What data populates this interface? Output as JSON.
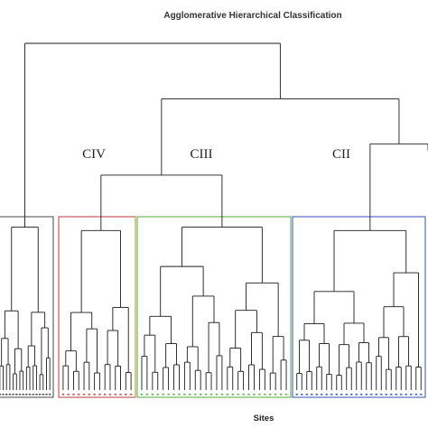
{
  "chart_data": {
    "type": "dendrogram",
    "title": "Agglomerative Hierarchical Classification",
    "xlabel": "Sites",
    "ylabel": "",
    "grid": false,
    "clusters": [
      {
        "id": "CV",
        "label": "",
        "color": "#555555",
        "leaves": 16
      },
      {
        "id": "CIV",
        "label": "CIV",
        "color": "#c0504d",
        "leaves": 14
      },
      {
        "id": "CIII",
        "label": "CIII",
        "color": "#5fb24a",
        "leaves": 28
      },
      {
        "id": "CII",
        "label": "CII",
        "color": "#3f5fbf",
        "leaves": 26
      }
    ],
    "box_colors": {
      "CV": "#555555",
      "CIV_left": "#c0504d",
      "CIV_right": "#c9a14a",
      "CIII": "#5fb24a",
      "CII": "#3f5fbf"
    },
    "merge_heights": {
      "root": 1.0,
      "CIV_CIII_CII": 0.84,
      "CII_rest": 0.71,
      "CIV_CIII": 0.62,
      "cluster_cut": 0.5
    },
    "cluster_link_heights": {
      "CV": 0.47,
      "CIV": 0.46,
      "CIII": 0.47,
      "CII": 0.46
    }
  }
}
